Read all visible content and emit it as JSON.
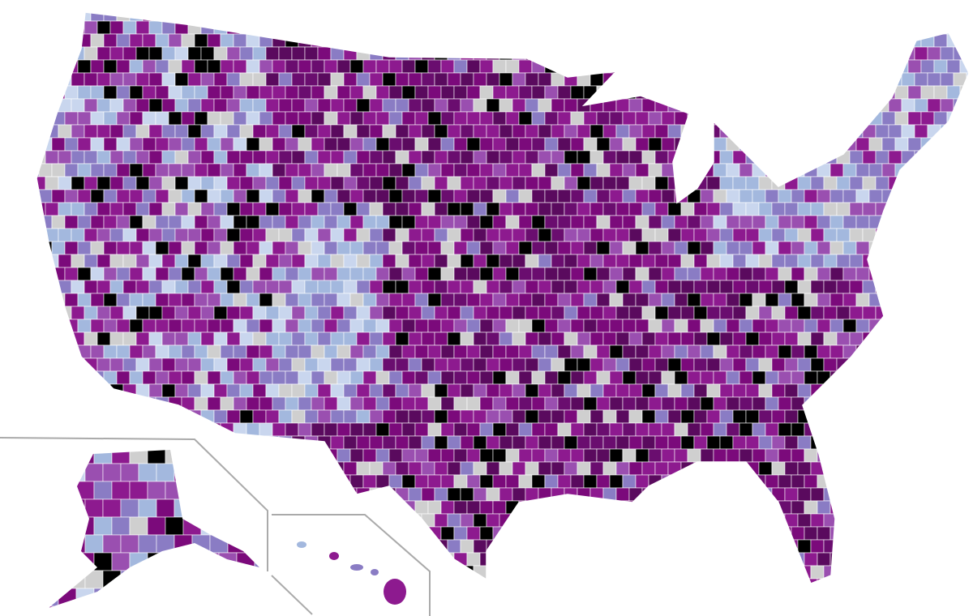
{
  "map": {
    "palette": [
      "#7b0a7b",
      "#8d1a8f",
      "#5a0a5e",
      "#9a4fb0",
      "#8a7cc4",
      "#a3b8de",
      "#c9d6ee",
      "#cfcfcf",
      "#000000",
      "#6a0d6f"
    ]
  }
}
